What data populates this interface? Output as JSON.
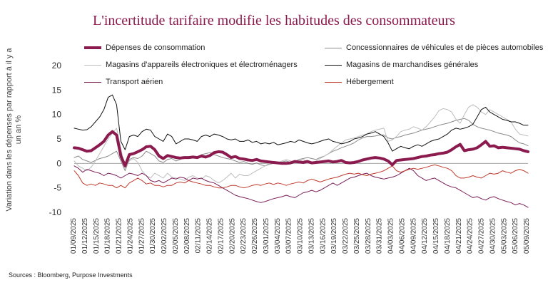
{
  "chart_data": {
    "type": "line",
    "title": "L'incertitude tarifaire modifie les habitudes des consommateurs",
    "ylabel": "Variation dans les dépenses par rapport à il y a un an %",
    "xlabel": "",
    "ylim": [
      -10,
      20
    ],
    "yticks": [
      -10,
      -5,
      0,
      5,
      10,
      15,
      20
    ],
    "source": "Sources : Bloomberg, Purpose Investments",
    "x_labels": [
      "01/09/2025",
      "01/12/2025",
      "01/15/2025",
      "01/18/2025",
      "01/21/2025",
      "01/24/2025",
      "01/27/2025",
      "01/30/2025",
      "02/02/2025",
      "02/05/2025",
      "02/08/2025",
      "02/11/2025",
      "02/14/2025",
      "02/17/2025",
      "02/20/2025",
      "02/23/2025",
      "02/26/2025",
      "03/01/2025",
      "03/04/2025",
      "03/07/2025",
      "03/10/2025",
      "03/13/2025",
      "03/16/2025",
      "03/19/2025",
      "03/22/2025",
      "03/25/2025",
      "03/28/2025",
      "03/31/2025",
      "04/03/2025",
      "04/06/2025",
      "04/09/2025",
      "04/12/2025",
      "04/15/2025",
      "04/18/2025",
      "04/21/2025",
      "04/24/2025",
      "04/27/2025",
      "04/30/2025",
      "05/03/2025",
      "05/06/2025",
      "05/09/2025"
    ],
    "series": [
      {
        "name": "Dépenses de consommation",
        "color": "#8b1a4e",
        "width": 4,
        "values": [
          3.2,
          3.1,
          2.8,
          2.5,
          2.6,
          3.2,
          3.8,
          4.5,
          5.8,
          6.5,
          5.8,
          1.5,
          -0.5,
          1.8,
          2.0,
          2.4,
          2.8,
          3.4,
          3.5,
          2.8,
          1.5,
          1.0,
          1.6,
          1.4,
          1.2,
          1.1,
          1.2,
          1.2,
          1.3,
          1.2,
          1.5,
          1.3,
          1.6,
          2.2,
          2.4,
          2.3,
          1.8,
          1.2,
          1.4,
          1.0,
          0.9,
          0.7,
          0.6,
          0.8,
          0.5,
          0.4,
          0.3,
          0.2,
          0.1,
          0.0,
          0.0,
          0.1,
          0.4,
          0.3,
          0.2,
          0.4,
          0.1,
          0.2,
          0.3,
          0.4,
          0.5,
          0.3,
          0.4,
          0.6,
          0.2,
          0.1,
          0.2,
          0.4,
          0.7,
          0.9,
          1.1,
          1.2,
          1.1,
          0.9,
          0.5,
          -0.3,
          0.6,
          0.7,
          0.8,
          0.9,
          1.0,
          1.2,
          1.4,
          1.5,
          1.7,
          1.8,
          2.0,
          2.1,
          2.3,
          2.8,
          3.4,
          3.9,
          2.6,
          2.8,
          2.9,
          3.2,
          3.8,
          4.5,
          3.5,
          3.6,
          3.2,
          3.3,
          3.2,
          3.1,
          3.0,
          2.9,
          2.6,
          2.4
        ]
      },
      {
        "name": "Concessionnaires de véhicules et de pièces automobiles",
        "color": "#8a8a8a",
        "width": 1,
        "values": [
          1.2,
          1.5,
          0.8,
          0.5,
          0.2,
          0.6,
          1.0,
          1.2,
          1.5,
          2.0,
          2.5,
          0.5,
          -1.5,
          0.8,
          1.2,
          1.0,
          1.5,
          2.5,
          2.0,
          1.5,
          0.5,
          0.2,
          0.8,
          1.0,
          0.5,
          0.8,
          1.2,
          1.0,
          1.5,
          1.2,
          1.8,
          2.0,
          2.2,
          1.8,
          1.5,
          1.2,
          1.0,
          0.8,
          0.5,
          0.2,
          0.4,
          0.0,
          -0.2,
          0.1,
          -0.3,
          -0.5,
          -0.2,
          0.0,
          0.2,
          0.3,
          0.5,
          0.2,
          0.4,
          0.8,
          1.0,
          1.2,
          1.0,
          0.8,
          1.2,
          1.5,
          2.0,
          2.5,
          2.8,
          3.2,
          3.5,
          3.8,
          4.2,
          4.8,
          5.2,
          5.5,
          5.5,
          5.6,
          5.8,
          5.8,
          5.2,
          5.0,
          5.3,
          5.5,
          5.8,
          6.0,
          6.2,
          6.5,
          6.8,
          7.0,
          7.2,
          7.5,
          7.8,
          8.0,
          8.2,
          8.5,
          8.8,
          9.0,
          9.2,
          8.8,
          8.0,
          7.5,
          7.2,
          7.0,
          6.8,
          6.5,
          6.2,
          6.0,
          5.8,
          5.5,
          4.8,
          4.2,
          4.0,
          3.6
        ]
      },
      {
        "name": "Magasins d'appareils électroniques et électroménagers",
        "color": "#bdbdbd",
        "width": 1,
        "values": [
          0.5,
          -0.5,
          -1.0,
          -1.5,
          -0.8,
          0.5,
          2.0,
          3.5,
          5.0,
          6.2,
          7.2,
          3.0,
          -1.0,
          0.5,
          1.0,
          0.2,
          -1.5,
          -2.5,
          -3.0,
          -2.0,
          -2.5,
          -3.0,
          -2.0,
          -2.8,
          -3.0,
          -3.2,
          -3.5,
          -2.8,
          -2.5,
          -3.0,
          -3.2,
          -2.5,
          -2.8,
          -3.5,
          -4.0,
          -3.5,
          -2.8,
          -2.0,
          -3.0,
          -2.2,
          -2.5,
          -2.5,
          -2.0,
          -1.5,
          -1.0,
          -0.5,
          0.0,
          0.3,
          0.2,
          0.5,
          0.8,
          0.5,
          0.3,
          0.5,
          0.8,
          0.3,
          0.0,
          0.5,
          1.0,
          1.5,
          2.0,
          2.8,
          3.5,
          4.2,
          4.8,
          5.0,
          5.2,
          5.5,
          5.8,
          6.0,
          6.5,
          6.8,
          7.0,
          7.2,
          4.5,
          4.8,
          5.5,
          6.5,
          6.8,
          7.0,
          7.5,
          7.2,
          6.8,
          7.5,
          8.5,
          9.5,
          10.8,
          11.2,
          11.0,
          10.5,
          9.0,
          8.2,
          10.0,
          11.5,
          12.0,
          11.5,
          10.5,
          10.0,
          11.0,
          10.5,
          10.0,
          9.5,
          9.0,
          8.5,
          7.0,
          6.0,
          5.8,
          5.6
        ]
      },
      {
        "name": "Magasins de marchandises générales",
        "color": "#111111",
        "width": 1,
        "values": [
          7.2,
          7.0,
          6.8,
          6.9,
          7.5,
          8.5,
          9.5,
          11.0,
          13.5,
          14.0,
          12.0,
          4.5,
          2.8,
          5.5,
          5.8,
          5.5,
          6.5,
          7.0,
          6.8,
          5.5,
          5.0,
          4.5,
          6.0,
          5.5,
          4.0,
          4.5,
          5.0,
          5.0,
          4.8,
          4.5,
          5.5,
          5.8,
          5.5,
          6.0,
          5.8,
          5.5,
          5.0,
          4.8,
          5.0,
          4.5,
          4.5,
          4.8,
          4.3,
          4.5,
          4.0,
          4.2,
          4.0,
          4.3,
          3.8,
          4.0,
          4.2,
          4.5,
          4.3,
          4.8,
          4.5,
          4.2,
          4.0,
          4.2,
          4.5,
          4.8,
          5.0,
          4.5,
          4.3,
          4.0,
          4.2,
          4.5,
          5.0,
          5.2,
          5.5,
          6.0,
          6.2,
          6.5,
          6.0,
          5.5,
          4.2,
          2.5,
          3.0,
          3.5,
          3.2,
          3.0,
          3.5,
          3.8,
          3.5,
          4.0,
          4.5,
          4.8,
          5.0,
          5.5,
          6.0,
          6.8,
          7.2,
          7.0,
          7.2,
          7.5,
          8.0,
          9.5,
          11.0,
          11.5,
          10.5,
          10.0,
          9.5,
          9.0,
          8.8,
          8.5,
          8.5,
          8.2,
          7.8,
          7.8
        ]
      },
      {
        "name": "Transport aérien",
        "color": "#7a1e58",
        "width": 1,
        "values": [
          -0.5,
          -1.0,
          -1.8,
          -1.2,
          -1.5,
          -1.8,
          -2.0,
          -2.5,
          -2.0,
          -2.2,
          -2.5,
          -3.0,
          -2.5,
          -2.0,
          -2.2,
          -2.5,
          -2.0,
          -2.5,
          -3.5,
          -3.8,
          -3.5,
          -4.0,
          -3.5,
          -3.0,
          -3.2,
          -2.8,
          -3.0,
          -3.5,
          -3.0,
          -3.2,
          -3.0,
          -3.5,
          -3.8,
          -4.0,
          -4.5,
          -5.0,
          -5.5,
          -6.0,
          -6.5,
          -6.8,
          -7.0,
          -7.2,
          -7.5,
          -7.8,
          -8.0,
          -7.8,
          -7.5,
          -7.2,
          -7.0,
          -6.8,
          -6.5,
          -6.8,
          -7.0,
          -6.5,
          -6.0,
          -5.8,
          -5.5,
          -5.8,
          -5.5,
          -5.0,
          -4.5,
          -4.0,
          -4.5,
          -4.0,
          -3.5,
          -3.0,
          -2.8,
          -2.5,
          -2.2,
          -2.0,
          -2.5,
          -2.8,
          -3.0,
          -3.2,
          -3.0,
          -2.8,
          -2.5,
          -2.0,
          -1.5,
          -1.0,
          -1.5,
          -2.5,
          -3.0,
          -3.5,
          -3.2,
          -3.0,
          -3.5,
          -4.0,
          -4.5,
          -4.8,
          -5.0,
          -5.5,
          -6.0,
          -6.5,
          -7.0,
          -6.8,
          -7.2,
          -7.5,
          -7.0,
          -6.8,
          -7.2,
          -7.5,
          -7.8,
          -8.0,
          -8.5,
          -8.2,
          -8.5,
          -9.0
        ]
      },
      {
        "name": "Hébergement",
        "color": "#c0392b",
        "width": 1,
        "values": [
          -1.5,
          -2.5,
          -4.0,
          -4.5,
          -4.2,
          -4.5,
          -4.0,
          -4.2,
          -4.5,
          -4.5,
          -5.0,
          -4.5,
          -5.0,
          -4.0,
          -3.5,
          -3.0,
          -3.5,
          -4.2,
          -4.0,
          -4.5,
          -4.5,
          -4.8,
          -4.5,
          -4.5,
          -4.0,
          -3.8,
          -4.0,
          -3.5,
          -3.8,
          -4.0,
          -4.2,
          -4.5,
          -4.5,
          -4.8,
          -5.0,
          -5.0,
          -4.8,
          -4.5,
          -4.5,
          -4.8,
          -5.0,
          -4.8,
          -4.5,
          -4.3,
          -4.5,
          -4.2,
          -4.0,
          -4.3,
          -4.0,
          -4.2,
          -4.5,
          -4.2,
          -4.0,
          -3.8,
          -4.0,
          -3.5,
          -3.2,
          -3.5,
          -3.8,
          -3.5,
          -3.2,
          -3.0,
          -2.8,
          -2.5,
          -2.2,
          -2.0,
          -2.2,
          -2.0,
          -2.3,
          -2.5,
          -2.2,
          -2.0,
          -1.8,
          -1.5,
          -1.0,
          -0.5,
          -1.5,
          -1.8,
          -1.5,
          -1.2,
          -1.0,
          -1.2,
          -1.0,
          -0.8,
          -0.5,
          -0.3,
          -0.5,
          -0.8,
          -1.0,
          -1.5,
          -2.5,
          -3.0,
          -3.0,
          -2.8,
          -2.5,
          -2.8,
          -3.0,
          -2.5,
          -2.0,
          -2.2,
          -2.0,
          -1.5,
          -1.8,
          -2.0,
          -1.5,
          -1.2,
          -1.5,
          -2.0
        ]
      }
    ]
  }
}
